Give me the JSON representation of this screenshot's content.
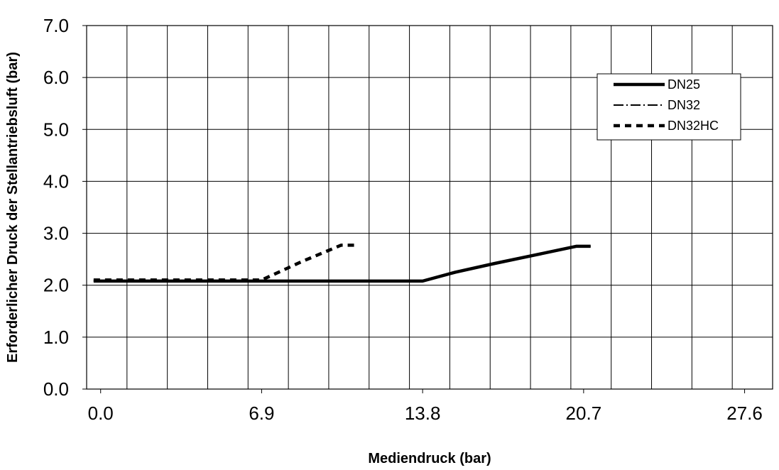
{
  "chart_data": {
    "type": "line",
    "title": "",
    "xlabel": "Mediendruck (bar)",
    "ylabel": "Erforderlicher Druck der Stellantriebsluft (bar)",
    "xlim": [
      -0.6,
      28.8
    ],
    "ylim": [
      0,
      7
    ],
    "x_ticks": [
      "0.0",
      "6.9",
      "13.8",
      "20.7",
      "27.6"
    ],
    "x_tick_values": [
      0,
      6.9,
      13.8,
      20.7,
      27.6
    ],
    "y_ticks": [
      "0.0",
      "1.0",
      "2.0",
      "3.0",
      "4.0",
      "5.0",
      "6.0",
      "7.0"
    ],
    "y_tick_values": [
      0,
      1,
      2,
      3,
      4,
      5,
      6,
      7
    ],
    "grid": true,
    "legend_position": "top-right",
    "series": [
      {
        "name": "DN25",
        "style": "solid-thick",
        "color": "#000000",
        "x": [
          -0.3,
          6.9,
          13.8,
          15.2,
          16.9,
          18.6,
          20.4,
          21.0
        ],
        "y": [
          2.08,
          2.08,
          2.08,
          2.25,
          2.42,
          2.58,
          2.75,
          2.75
        ]
      },
      {
        "name": "DN32",
        "style": "dash-dot",
        "color": "#000000",
        "x": [
          -0.3,
          6.9,
          13.8,
          15.2,
          16.9,
          18.6,
          20.4,
          21.0
        ],
        "y": [
          2.08,
          2.08,
          2.08,
          2.25,
          2.42,
          2.58,
          2.75,
          2.75
        ]
      },
      {
        "name": "DN32HC",
        "style": "dashed",
        "color": "#000000",
        "x": [
          -0.3,
          6.9,
          8.6,
          10.3,
          11.0
        ],
        "y": [
          2.1,
          2.1,
          2.45,
          2.77,
          2.77
        ]
      }
    ]
  }
}
